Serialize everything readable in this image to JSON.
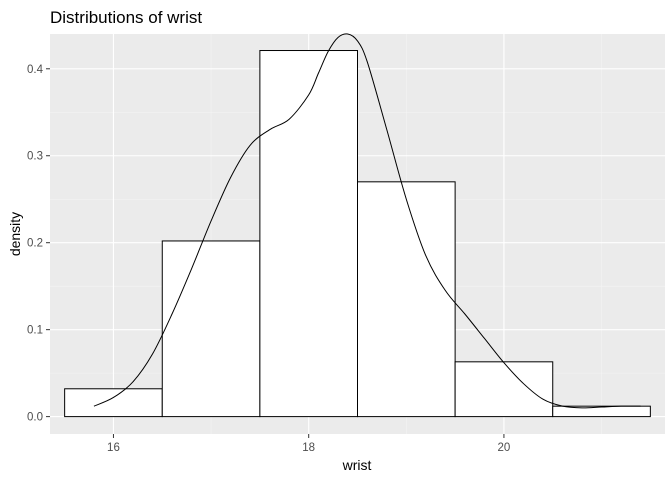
{
  "chart_data": {
    "type": "bar",
    "title": "Distributions of wrist",
    "xlabel": "wrist",
    "ylabel": "density",
    "xlim": [
      15.35,
      21.65
    ],
    "ylim": [
      -0.02,
      0.44
    ],
    "x_ticks": [
      16,
      18,
      20
    ],
    "x_tick_labels": [
      "16",
      "18",
      "20"
    ],
    "y_ticks": [
      0.0,
      0.1,
      0.2,
      0.3,
      0.4
    ],
    "y_tick_labels": [
      "0.0",
      "0.1",
      "0.2",
      "0.3",
      "0.4"
    ],
    "grid": true,
    "bins": [
      {
        "start": 15.5,
        "end": 16.5,
        "density": 0.032
      },
      {
        "start": 16.5,
        "end": 17.5,
        "density": 0.202
      },
      {
        "start": 17.5,
        "end": 18.5,
        "density": 0.421
      },
      {
        "start": 18.5,
        "end": 19.5,
        "density": 0.27
      },
      {
        "start": 19.5,
        "end": 20.5,
        "density": 0.063
      },
      {
        "start": 20.5,
        "end": 21.5,
        "density": 0.012
      }
    ],
    "density_curve": {
      "x": [
        15.8,
        16.0,
        16.2,
        16.4,
        16.6,
        16.8,
        17.0,
        17.2,
        17.4,
        17.6,
        17.8,
        18.0,
        18.1,
        18.2,
        18.3,
        18.4,
        18.5,
        18.6,
        18.8,
        19.0,
        19.2,
        19.4,
        19.6,
        19.8,
        20.0,
        20.2,
        20.4,
        20.6,
        20.8,
        21.0,
        21.2,
        21.4
      ],
      "y": [
        0.012,
        0.022,
        0.04,
        0.072,
        0.118,
        0.17,
        0.225,
        0.275,
        0.312,
        0.33,
        0.342,
        0.37,
        0.395,
        0.42,
        0.436,
        0.44,
        0.432,
        0.408,
        0.33,
        0.25,
        0.185,
        0.145,
        0.118,
        0.09,
        0.062,
        0.038,
        0.02,
        0.012,
        0.01,
        0.011,
        0.012,
        0.012
      ]
    }
  }
}
